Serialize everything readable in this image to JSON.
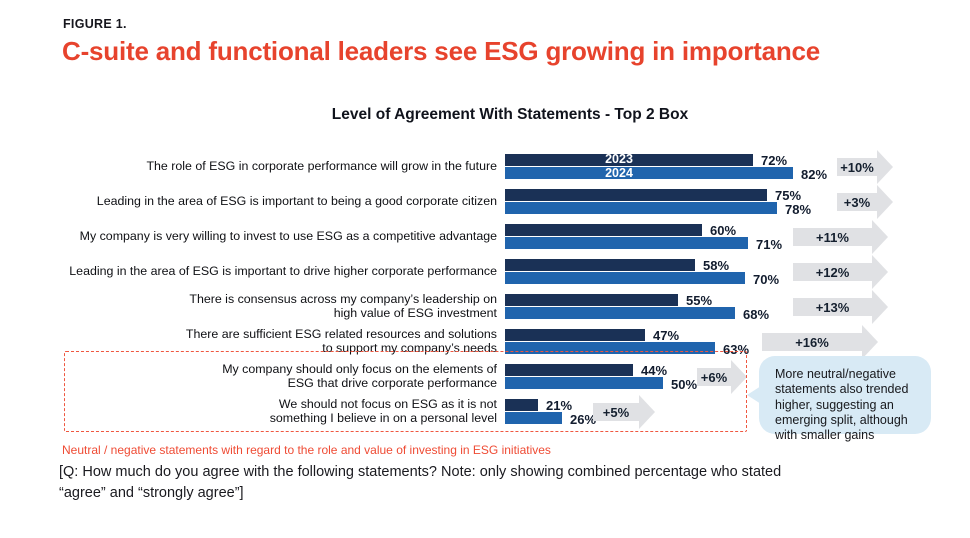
{
  "figure_label": "FIGURE 1.",
  "title": "C-suite and functional leaders see ESG growing in importance",
  "chart_title": "Level of Agreement With Statements - Top 2 Box",
  "chart_data": {
    "type": "bar",
    "orientation": "horizontal",
    "unit": "%",
    "xlim": [
      0,
      100
    ],
    "grid": false,
    "legend_position": "inside-first-bars",
    "categories": [
      "The role of ESG in corporate performance will grow in the future",
      "Leading in the area of ESG is important to being a good corporate citizen",
      "My company is very willing to invest to use ESG as a competitive advantage",
      "Leading in the area of ESG is important to drive higher corporate performance",
      "There is consensus across my company’s leadership on\nhigh value of ESG investment",
      "There are sufficient ESG related resources and solutions\nto support my company’s needs",
      "My company should only focus on the elements of\nESG that drive corporate performance",
      "We should not focus on ESG as it is not\nsomething I believe in on a personal level"
    ],
    "series": [
      {
        "name": "2023",
        "color": "#1a3156",
        "values": [
          72,
          75,
          60,
          58,
          55,
          47,
          44,
          21
        ]
      },
      {
        "name": "2024",
        "color": "#2064ad",
        "values": [
          82,
          78,
          71,
          70,
          68,
          63,
          50,
          26
        ]
      }
    ],
    "deltas": [
      "+10%",
      "+3%",
      "+11%",
      "+12%",
      "+13%",
      "+16%",
      "+6%",
      "+5%"
    ]
  },
  "highlight_box": {
    "note": "Neutral / negative statements with regard to the role and value of investing in ESG initiatives"
  },
  "callout": {
    "text": "More neutral/negative statements also trended higher, suggesting an emerging split, although with smaller gains"
  },
  "footnote": "[Q: How much do you agree with the following statements? Note: only showing combined percentage who stated\n“agree” and “strongly agree”]",
  "colors": {
    "accent_red": "#e7432d",
    "bar_2023": "#1a3156",
    "bar_2024": "#2064ad",
    "arrow_gray": "#e0e1e4",
    "callout_bg": "#d8eaf5",
    "value_text": "#121c2e"
  }
}
